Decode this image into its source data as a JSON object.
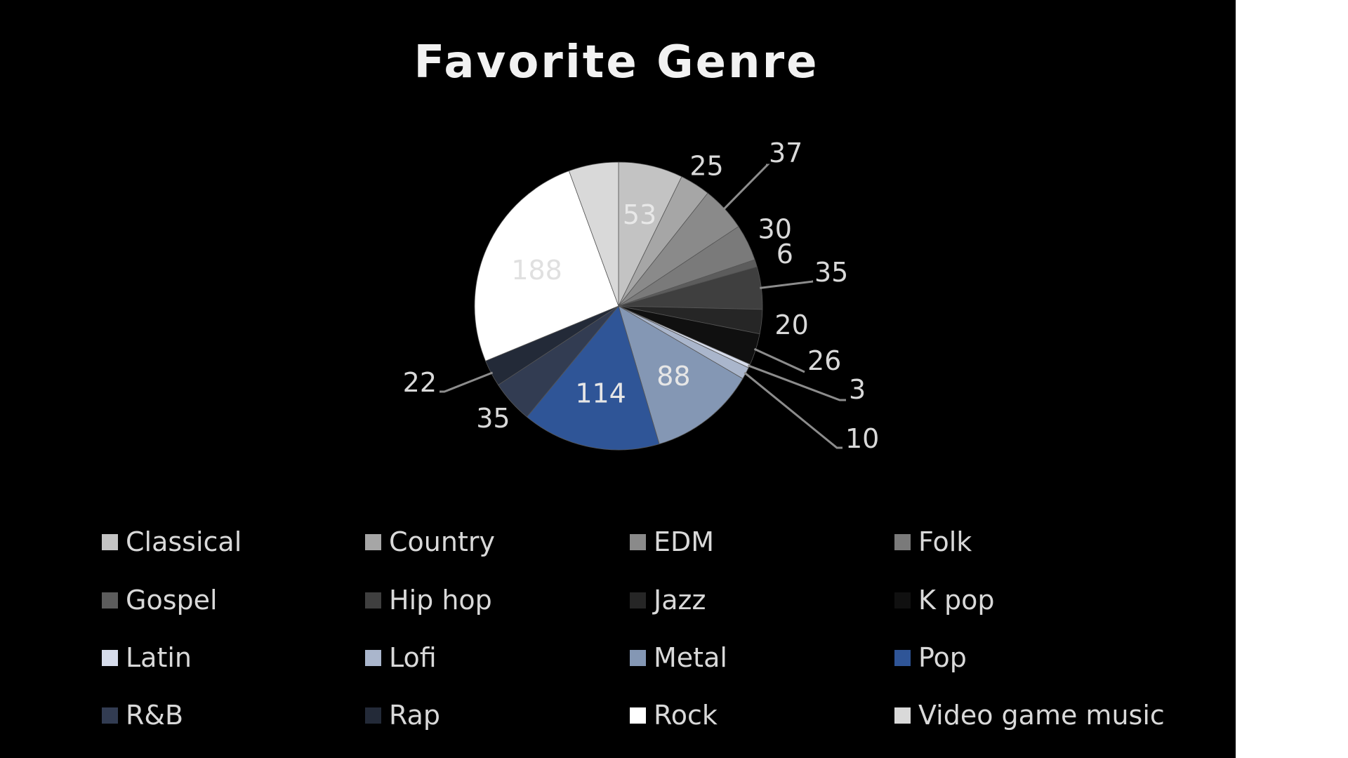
{
  "chart_data": {
    "type": "pie",
    "title": "Favorite Genre",
    "legend_position": "bottom",
    "categories": [
      "Classical",
      "Country",
      "EDM",
      "Folk",
      "Gospel",
      "Hip hop",
      "Jazz",
      "K pop",
      "Latin",
      "Lofi",
      "Metal",
      "Pop",
      "R&B",
      "Rap",
      "Rock",
      "Video game music"
    ],
    "values": [
      53,
      25,
      37,
      30,
      6,
      35,
      20,
      26,
      3,
      10,
      88,
      114,
      35,
      22,
      188,
      41
    ],
    "data_labels": [
      "53",
      "25",
      "37",
      "30",
      "6",
      "35",
      "20",
      "26",
      "3",
      "10",
      "88",
      "114",
      "35",
      "22",
      "188",
      ""
    ],
    "colors": [
      "#c3c3c3",
      "#a6a6a6",
      "#8a8a8a",
      "#7a7a7a",
      "#5c5c5c",
      "#3f3f3f",
      "#262626",
      "#101010",
      "#d6dceb",
      "#aab6cc",
      "#8497b4",
      "#2f5597",
      "#323c52",
      "#232a38",
      "#ffffff",
      "#d9d9d9"
    ],
    "label_colors": [
      "#e8e8e8",
      "#d9d9d9",
      "#d9d9d9",
      "#d9d9d9",
      "#d9d9d9",
      "#d9d9d9",
      "#d9d9d9",
      "#d9d9d9",
      "#d9d9d9",
      "#d9d9d9",
      "#e6e6e6",
      "#e6e6e6",
      "#d9d9d9",
      "#d9d9d9",
      "#e0e0e0",
      "#d9d9d9"
    ]
  }
}
